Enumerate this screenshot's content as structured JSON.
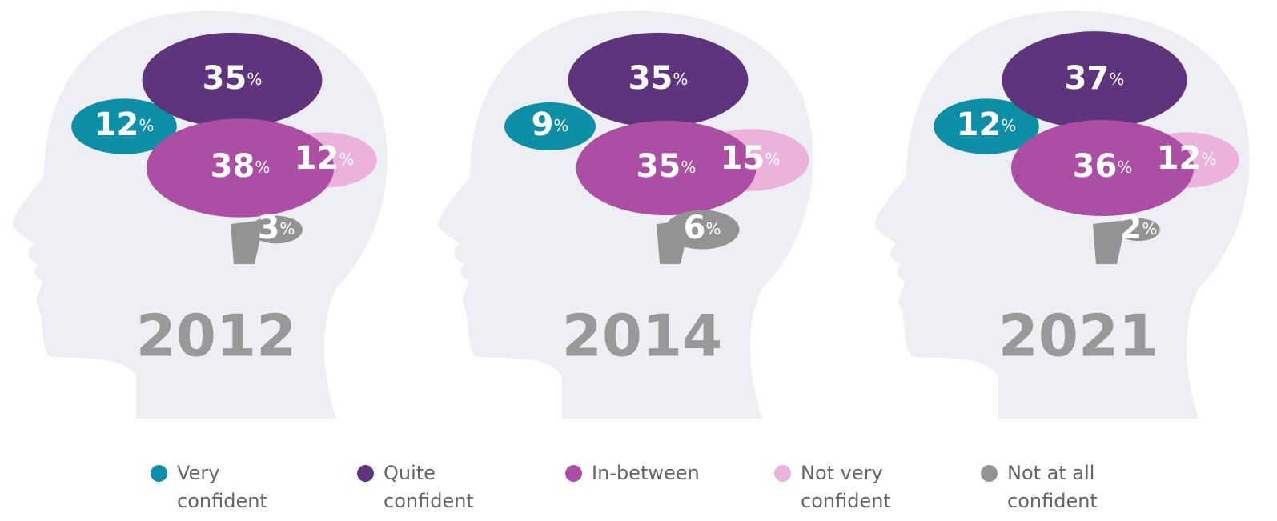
{
  "chart_data": {
    "type": "brain",
    "categories": [
      "Very confident",
      "Quite confident",
      "In-between",
      "Not very confident",
      "Not at all confident"
    ],
    "colors": [
      "#0e8fa8",
      "#5e347c",
      "#ac4ea3",
      "#ebb3dc",
      "#939393"
    ],
    "series": [
      {
        "name": "2012",
        "values": [
          12,
          35,
          38,
          12,
          3
        ],
        "value_labels": [
          "12%",
          "35%",
          "38%",
          "12%",
          "3%"
        ]
      },
      {
        "name": "2014",
        "values": [
          9,
          35,
          35,
          15,
          6
        ],
        "value_labels": [
          "9%",
          "35%",
          "35%",
          "15%",
          "6%"
        ]
      },
      {
        "name": "2021",
        "values": [
          12,
          37,
          36,
          12,
          2
        ],
        "value_labels": [
          "12%",
          "37%",
          "36%",
          "12%",
          "2%"
        ]
      }
    ]
  }
}
